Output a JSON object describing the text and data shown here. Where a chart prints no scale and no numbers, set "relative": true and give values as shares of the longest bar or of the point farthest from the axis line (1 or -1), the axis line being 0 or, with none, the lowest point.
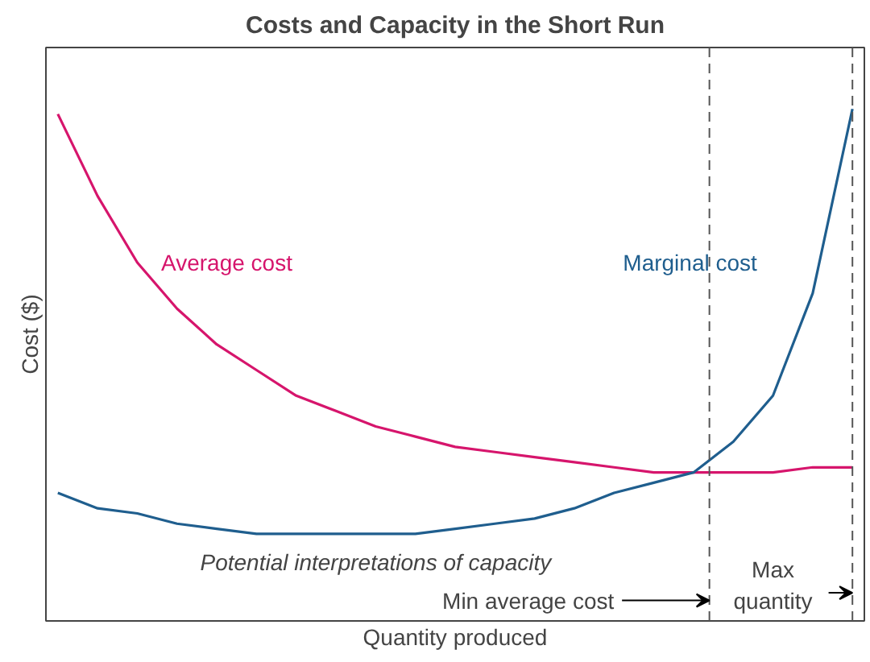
{
  "chart_data": {
    "type": "line",
    "title": "Costs and Capacity in the Short Run",
    "xlabel": "Quantity produced",
    "ylabel": "Cost ($)",
    "relative": true,
    "legend": false,
    "categories": [
      null,
      null,
      null,
      null,
      null,
      null,
      null,
      null,
      null,
      null,
      null,
      null,
      null,
      null,
      null,
      null,
      null,
      null,
      null,
      null,
      null
    ],
    "series": [
      {
        "name": "Average cost",
        "color": "#d6156c",
        "values": [
          0.99,
          0.83,
          0.7,
          0.61,
          0.54,
          0.49,
          0.44,
          0.41,
          0.38,
          0.36,
          0.34,
          0.33,
          0.32,
          0.31,
          0.3,
          0.29,
          0.29,
          0.29,
          0.29,
          0.3,
          0.3
        ]
      },
      {
        "name": "Marginal cost",
        "color": "#1f5e8e",
        "values": [
          0.25,
          0.22,
          0.21,
          0.19,
          0.18,
          0.17,
          0.17,
          0.17,
          0.17,
          0.17,
          0.18,
          0.19,
          0.2,
          0.22,
          0.25,
          0.27,
          0.29,
          0.35,
          0.44,
          0.64,
          1.0
        ]
      }
    ],
    "annotations": [
      "Potential interpretations of capacity",
      "Min average cost",
      "Max quantity"
    ]
  }
}
